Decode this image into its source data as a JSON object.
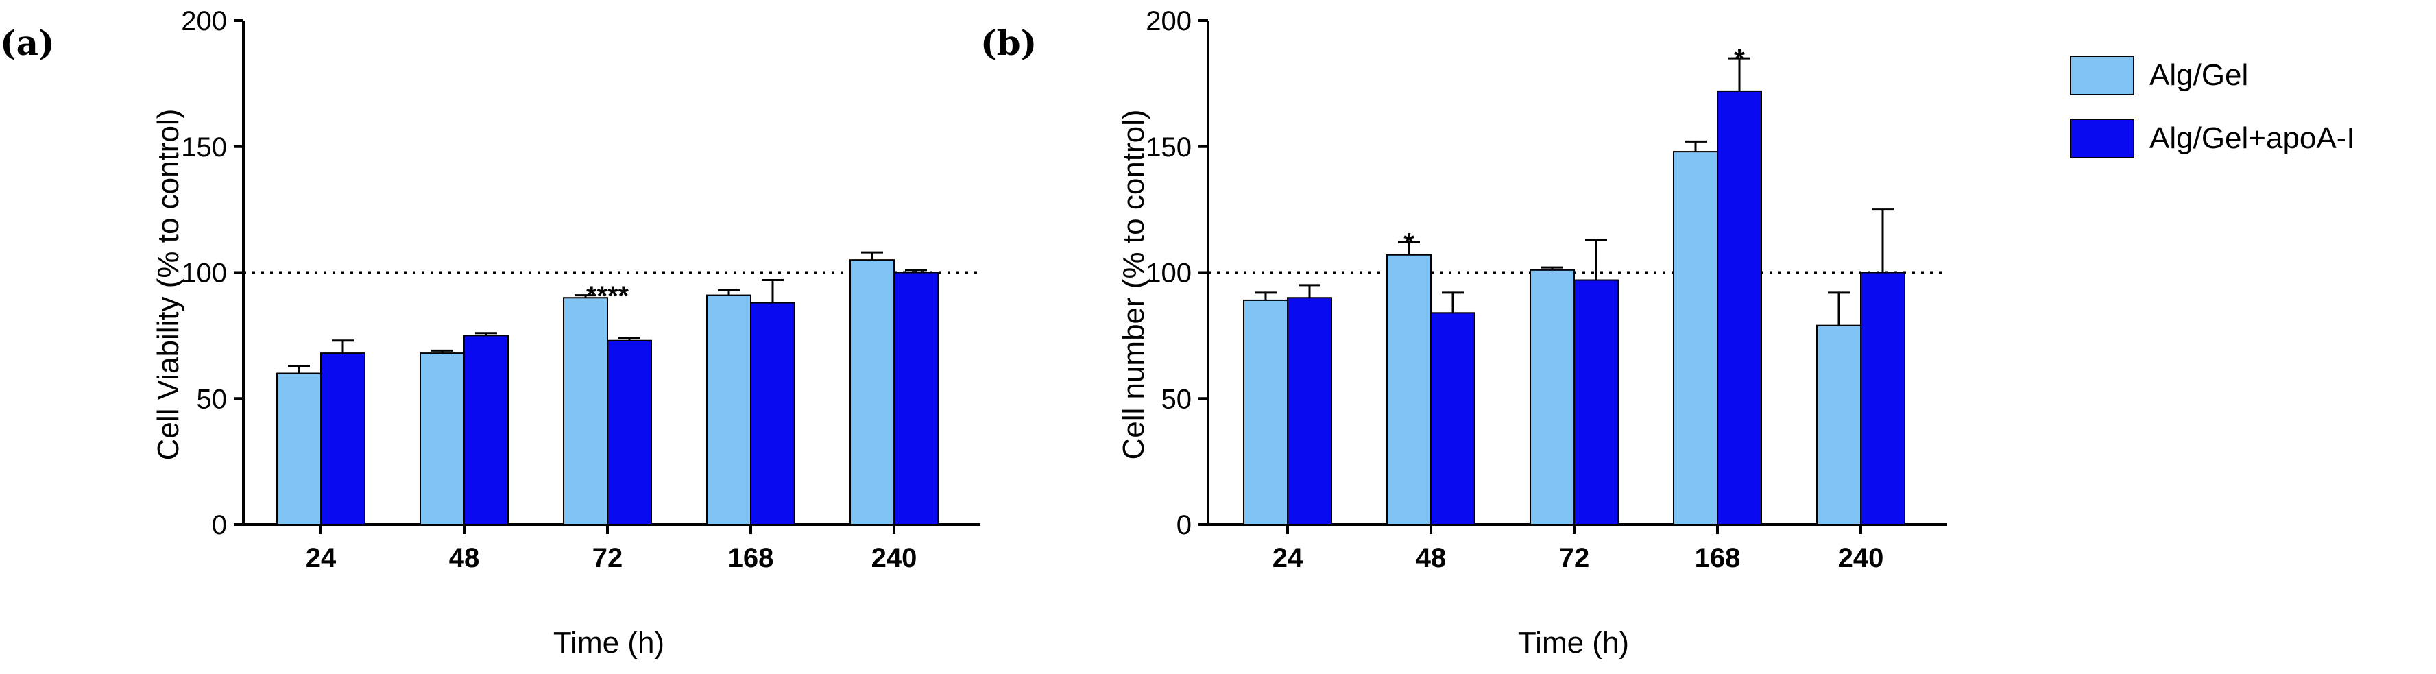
{
  "legend": [
    {
      "name": "Alg/Gel",
      "color": "#80c4f6"
    },
    {
      "name": "Alg/Gel+apoA-I",
      "color": "#0a0af0"
    }
  ],
  "chart_data": [
    {
      "panel_label": "(a)",
      "type": "bar",
      "title": "",
      "xlabel": "Time (h)",
      "ylabel": "Cell Viability  (% to control)",
      "categories": [
        "24",
        "48",
        "72",
        "168",
        "240"
      ],
      "ylim": [
        0,
        200
      ],
      "yticks": [
        0,
        50,
        100,
        150,
        200
      ],
      "reference_line": 100,
      "series": [
        {
          "name": "Alg/Gel",
          "values": [
            60,
            68,
            90,
            91,
            105
          ],
          "errors": [
            3,
            1,
            1,
            2,
            3
          ]
        },
        {
          "name": "Alg/Gel+apoA-I",
          "values": [
            68,
            75,
            73,
            88,
            100
          ],
          "errors": [
            5,
            1,
            1,
            9,
            1
          ]
        }
      ],
      "annotations": [
        {
          "text": "****",
          "category": "72",
          "y": 92
        }
      ]
    },
    {
      "panel_label": "(b)",
      "type": "bar",
      "title": "",
      "xlabel": "Time (h)",
      "ylabel": "Cell number (% to control)",
      "categories": [
        "24",
        "48",
        "72",
        "168",
        "240"
      ],
      "ylim": [
        0,
        200
      ],
      "yticks": [
        0,
        50,
        100,
        150,
        200
      ],
      "reference_line": 100,
      "series": [
        {
          "name": "Alg/Gel",
          "values": [
            89,
            107,
            101,
            148,
            79
          ],
          "errors": [
            3,
            5,
            1,
            4,
            13
          ]
        },
        {
          "name": "Alg/Gel+apoA-I",
          "values": [
            90,
            84,
            97,
            172,
            100
          ],
          "errors": [
            5,
            8,
            16,
            13,
            25
          ]
        }
      ],
      "annotations": [
        {
          "text": "*",
          "category": "48",
          "series": 0,
          "y": 113
        },
        {
          "text": "*",
          "category": "168",
          "series": 1,
          "y": 186
        }
      ]
    }
  ]
}
